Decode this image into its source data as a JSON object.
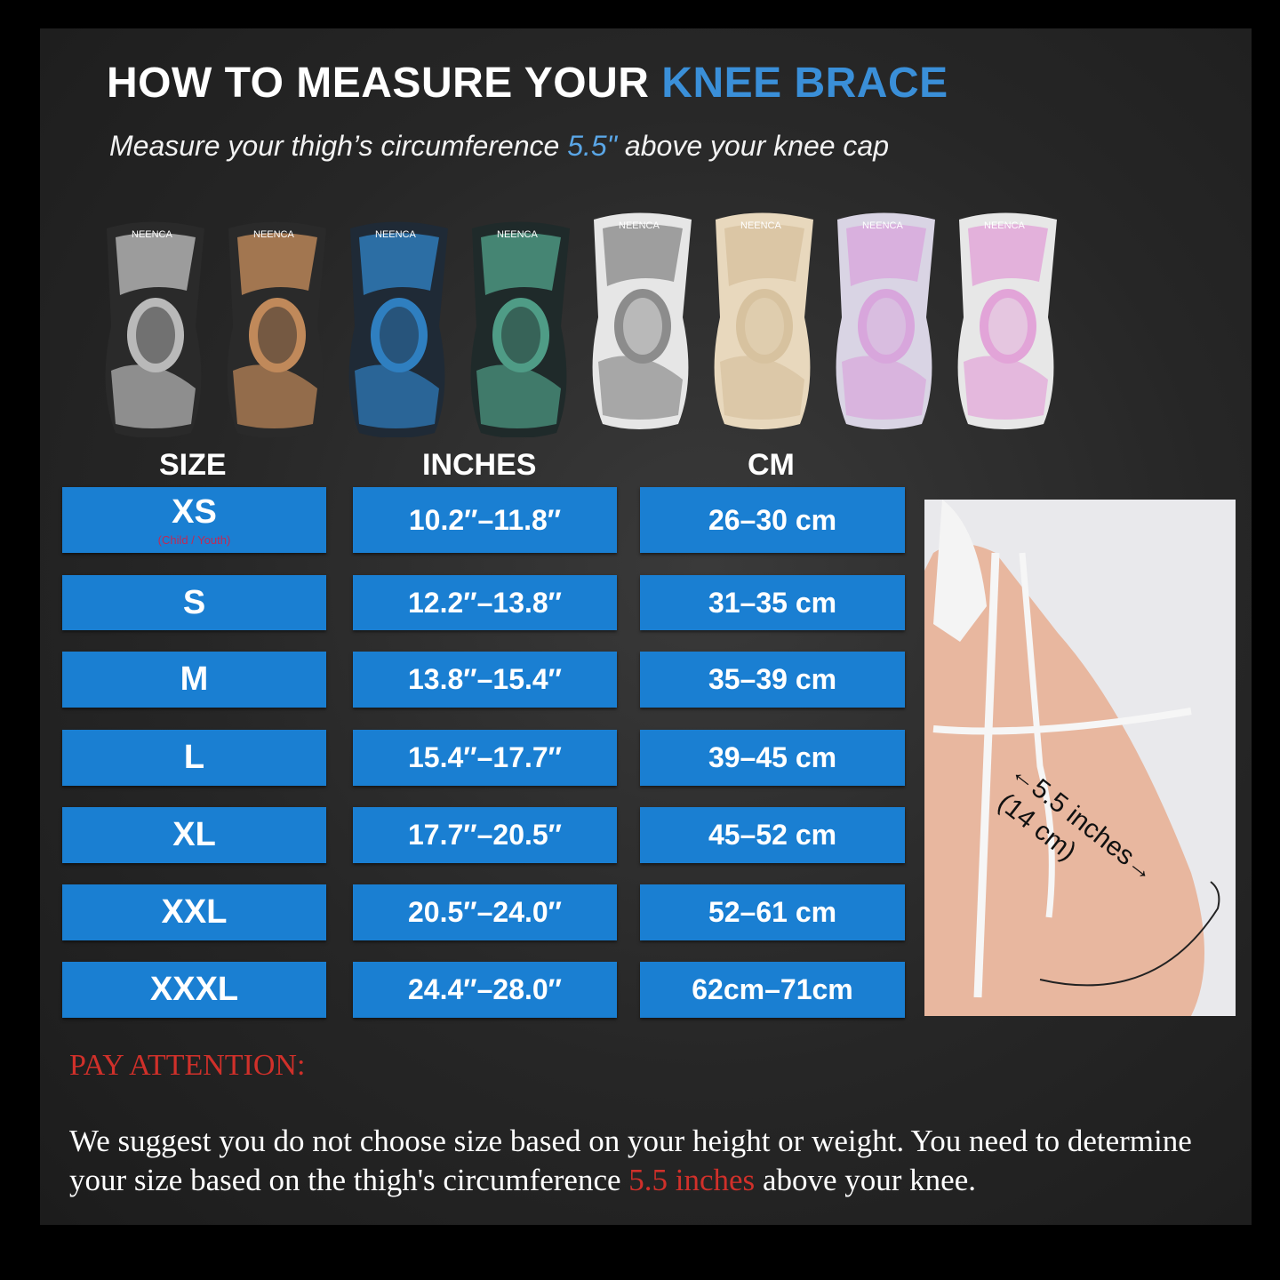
{
  "header": {
    "title_prefix": "HOW TO MEASURE YOUR",
    "title_accent": "KNEE BRACE",
    "subtitle_prefix": "Measure your thigh’s circumference",
    "subtitle_accent": "5.5\"",
    "subtitle_suffix": "above your knee cap"
  },
  "product": {
    "brand": "NEENCA",
    "variants": [
      {
        "color": "gray-black",
        "main": "#2a2a2a",
        "accent": "#b9b9b9"
      },
      {
        "color": "bronze-black",
        "main": "#2a2a2a",
        "accent": "#c0895a"
      },
      {
        "color": "blue-black",
        "main": "#1f2a36",
        "accent": "#2f7fc0"
      },
      {
        "color": "green-black",
        "main": "#1f2a2a",
        "accent": "#4f9c86"
      },
      {
        "color": "white-gray",
        "main": "#e6e6e6",
        "accent": "#8c8c8c"
      },
      {
        "color": "beige",
        "main": "#e8d8bd",
        "accent": "#d7c29f"
      },
      {
        "color": "lavender",
        "main": "#d9d4e4",
        "accent": "#d8a6dc"
      },
      {
        "color": "pink-white",
        "main": "#e7e7e7",
        "accent": "#e2a4d8"
      }
    ]
  },
  "table": {
    "headers": [
      "SIZE",
      "INCHES",
      "CM"
    ],
    "rows": [
      {
        "size": "XS",
        "note": "(Child / Youth)",
        "inches": "10.2″–11.8″",
        "cm": "26–30 cm"
      },
      {
        "size": "S",
        "inches": "12.2″–13.8″",
        "cm": "31–35 cm"
      },
      {
        "size": "M",
        "inches": "13.8″–15.4″",
        "cm": "35–39 cm"
      },
      {
        "size": "L",
        "inches": "15.4″–17.7″",
        "cm": "39–45 cm"
      },
      {
        "size": "XL",
        "inches": "17.7″–20.5″",
        "cm": "45–52 cm"
      },
      {
        "size": "XXL",
        "inches": "20.5″–24.0″",
        "cm": "52–61 cm"
      },
      {
        "size": "XXXL",
        "inches": "24.4″–28.0″",
        "cm": "62cm–71cm"
      }
    ]
  },
  "photo": {
    "label_line1": "←5.5 inches→",
    "label_line2": "(14 cm)"
  },
  "attention": {
    "heading": "PAY ATTENTION:",
    "text_prefix": "We suggest you do not choose size based on your height or weight. You need to determine your size based on the thigh's circumference",
    "text_accent": "5.5 inches",
    "text_suffix": "above your knee."
  },
  "colors": {
    "accent_blue": "#1a7fd2",
    "title_blue": "#3a8fd8",
    "warning_red": "#d0302a"
  }
}
